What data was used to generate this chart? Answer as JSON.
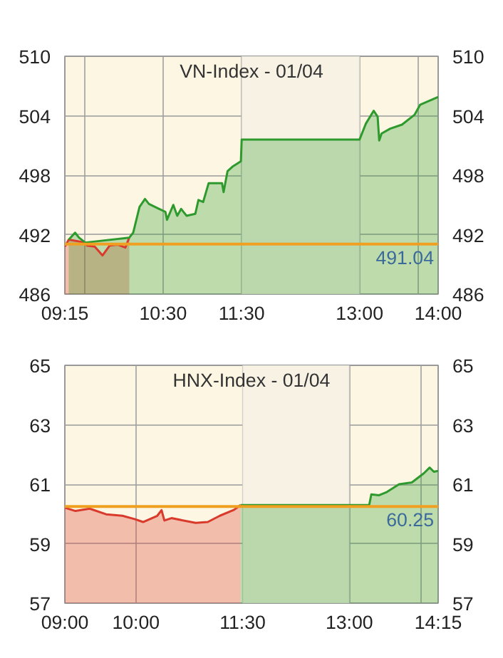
{
  "chart_data": [
    {
      "type": "area",
      "title": "VN-Index - 01/04",
      "xlim": [
        9.25,
        14
      ],
      "xticks": [
        {
          "value": 9.25,
          "label": "09:15"
        },
        {
          "value": 9.5,
          "label": null
        },
        {
          "value": 10.5,
          "label": "10:30"
        },
        {
          "value": 11.5,
          "label": "11:30"
        },
        {
          "value": 13,
          "label": "13:00"
        },
        {
          "value": 13.75,
          "label": null
        },
        {
          "value": 14,
          "label": "14:00"
        }
      ],
      "ylim": [
        486,
        510
      ],
      "yticks": [
        486,
        492,
        498,
        504,
        510
      ],
      "y2lim": [
        486,
        510
      ],
      "y2ticks": [
        486,
        492,
        498,
        504,
        510
      ],
      "grid": true,
      "bands": [
        {
          "axis": "x",
          "from": 11.5,
          "to": 13,
          "color": "#f7f2e3"
        }
      ],
      "ref_lines": [
        {
          "axis": "y",
          "value": 491.04,
          "label": "491.04",
          "color": "#f0a020"
        }
      ],
      "series": [
        {
          "color": "#d93a2b",
          "x": [
            9.25,
            9.3,
            9.51,
            9.53,
            9.63,
            9.73,
            9.82,
            9.92,
            10.02,
            10.07
          ],
          "values": [
            490.8,
            491.5,
            491.2,
            490.9,
            490.8,
            489.9,
            490.9,
            491.0,
            490.7,
            491.7
          ]
        },
        {
          "color": "#2e9a2e",
          "x": [
            9.3,
            9.38,
            9.43,
            9.51,
            10.07,
            10.12,
            10.2,
            10.27,
            10.32,
            10.45,
            10.53,
            10.55,
            10.63,
            10.68,
            10.73,
            10.8,
            10.91,
            10.95,
            11.01,
            11.08,
            11.17,
            11.25,
            11.27,
            11.32,
            11.39,
            11.49,
            11.5,
            13.0,
            13.08,
            13.18,
            13.23,
            13.25,
            13.28,
            13.39,
            13.54,
            13.7,
            13.77,
            14.0
          ],
          "values": [
            491.5,
            492.2,
            491.7,
            491.2,
            491.7,
            492.2,
            494.8,
            495.6,
            495.1,
            494.6,
            494.3,
            493.5,
            495.0,
            493.9,
            494.6,
            493.9,
            494.1,
            495.5,
            495.3,
            497.2,
            497.2,
            497.2,
            496.3,
            498.4,
            498.9,
            499.4,
            501.6,
            501.6,
            503.2,
            504.5,
            503.9,
            501.5,
            502.2,
            502.7,
            503.1,
            504.1,
            505.1,
            505.9
          ]
        }
      ]
    },
    {
      "type": "area",
      "title": "HNX-Index - 01/04",
      "xlim": [
        9,
        14.25
      ],
      "xticks": [
        {
          "value": 9,
          "label": "09:00"
        },
        {
          "value": 10,
          "label": "10:00"
        },
        {
          "value": 11.5,
          "label": "11:30"
        },
        {
          "value": 13,
          "label": "13:00"
        },
        {
          "value": 14,
          "label": null
        },
        {
          "value": 14.25,
          "label": "14:15"
        }
      ],
      "ylim": [
        57,
        65
      ],
      "yticks": [
        57,
        59,
        61,
        63,
        65
      ],
      "y2lim": [
        57,
        65
      ],
      "y2ticks": [
        57,
        59,
        61,
        63,
        65
      ],
      "grid": true,
      "bands": [
        {
          "axis": "x",
          "from": 11.5,
          "to": 13,
          "color": "#f7f2e3"
        }
      ],
      "ref_lines": [
        {
          "axis": "y",
          "value": 60.25,
          "label": "60.25",
          "color": "#f0a020"
        }
      ],
      "series": [
        {
          "color": "#d93a2b",
          "x": [
            9,
            9.15,
            9.35,
            9.58,
            9.81,
            9.98,
            10.1,
            10.3,
            10.36,
            10.4,
            10.5,
            10.67,
            10.84,
            11.01,
            11.18,
            11.38,
            11.47
          ],
          "values": [
            60.21,
            60.1,
            60.18,
            59.99,
            59.94,
            59.83,
            59.73,
            59.94,
            60.13,
            59.78,
            59.86,
            59.78,
            59.7,
            59.73,
            59.94,
            60.14,
            60.3
          ]
        },
        {
          "color": "#2e9a2e",
          "x": [
            11.47,
            13.28,
            13.31,
            13.42,
            13.53,
            13.7,
            13.88,
            14.05,
            14.13,
            14.19,
            14.25
          ],
          "values": [
            60.3,
            60.3,
            60.66,
            60.63,
            60.74,
            61.0,
            61.06,
            61.37,
            61.56,
            61.42,
            61.45
          ]
        }
      ]
    }
  ]
}
